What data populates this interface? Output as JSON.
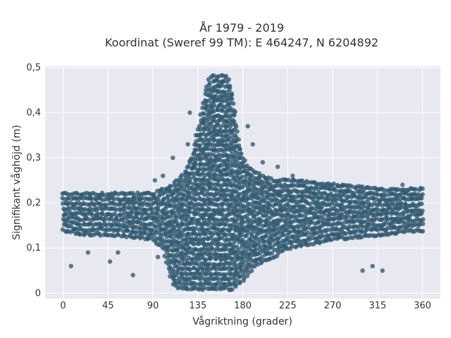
{
  "chart_data": {
    "type": "scatter",
    "title_line1": "År 1979 - 2019",
    "title_line2": "Koordinat (Sweref 99 TM): E 464247, N 6204892",
    "xlabel": "Vågriktning (grader)",
    "ylabel": "Signifikant våghöjd (m)",
    "xlim": [
      -18,
      378
    ],
    "ylim": [
      -0.012,
      0.503
    ],
    "x_ticks": [
      0,
      45,
      90,
      135,
      180,
      225,
      270,
      315,
      360
    ],
    "x_tick_labels": [
      "0",
      "45",
      "90",
      "135",
      "180",
      "225",
      "270",
      "315",
      "360"
    ],
    "y_ticks": [
      0,
      0.1,
      0.2,
      0.3,
      0.4,
      0.5
    ],
    "y_tick_labels": [
      "0",
      "0,1",
      "0,2",
      "0,3",
      "0,4",
      "0,5"
    ],
    "grid": true,
    "point_color": "#2f5870",
    "plot_background": "#e8e8f0",
    "envelope": {
      "x": [
        0,
        20,
        45,
        90,
        100,
        110,
        120,
        130,
        135,
        140,
        145,
        150,
        155,
        160,
        165,
        170,
        175,
        180,
        185,
        190,
        200,
        210,
        225,
        270,
        315,
        360
      ],
      "y_min": [
        0.14,
        0.13,
        0.13,
        0.12,
        0.1,
        0.02,
        0.01,
        0.01,
        0.01,
        0.01,
        0.01,
        0.01,
        0.01,
        0.01,
        0.01,
        0.01,
        0.02,
        0.03,
        0.04,
        0.06,
        0.07,
        0.08,
        0.1,
        0.12,
        0.13,
        0.14
      ],
      "y_max": [
        0.22,
        0.22,
        0.22,
        0.22,
        0.23,
        0.24,
        0.26,
        0.31,
        0.36,
        0.42,
        0.47,
        0.48,
        0.48,
        0.48,
        0.48,
        0.44,
        0.35,
        0.3,
        0.28,
        0.27,
        0.26,
        0.25,
        0.25,
        0.24,
        0.23,
        0.23
      ]
    },
    "outliers": [
      [
        8,
        0.06
      ],
      [
        25,
        0.09
      ],
      [
        47,
        0.07
      ],
      [
        55,
        0.09
      ],
      [
        70,
        0.04
      ],
      [
        85,
        0.12
      ],
      [
        95,
        0.08
      ],
      [
        92,
        0.25
      ],
      [
        100,
        0.26
      ],
      [
        110,
        0.3
      ],
      [
        125,
        0.33
      ],
      [
        127,
        0.4
      ],
      [
        131,
        0.28
      ],
      [
        133,
        0.35
      ],
      [
        185,
        0.37
      ],
      [
        190,
        0.33
      ],
      [
        200,
        0.29
      ],
      [
        215,
        0.28
      ],
      [
        230,
        0.26
      ],
      [
        280,
        0.24
      ],
      [
        300,
        0.05
      ],
      [
        310,
        0.06
      ],
      [
        320,
        0.05
      ],
      [
        340,
        0.24
      ],
      [
        350,
        0.21
      ]
    ]
  }
}
